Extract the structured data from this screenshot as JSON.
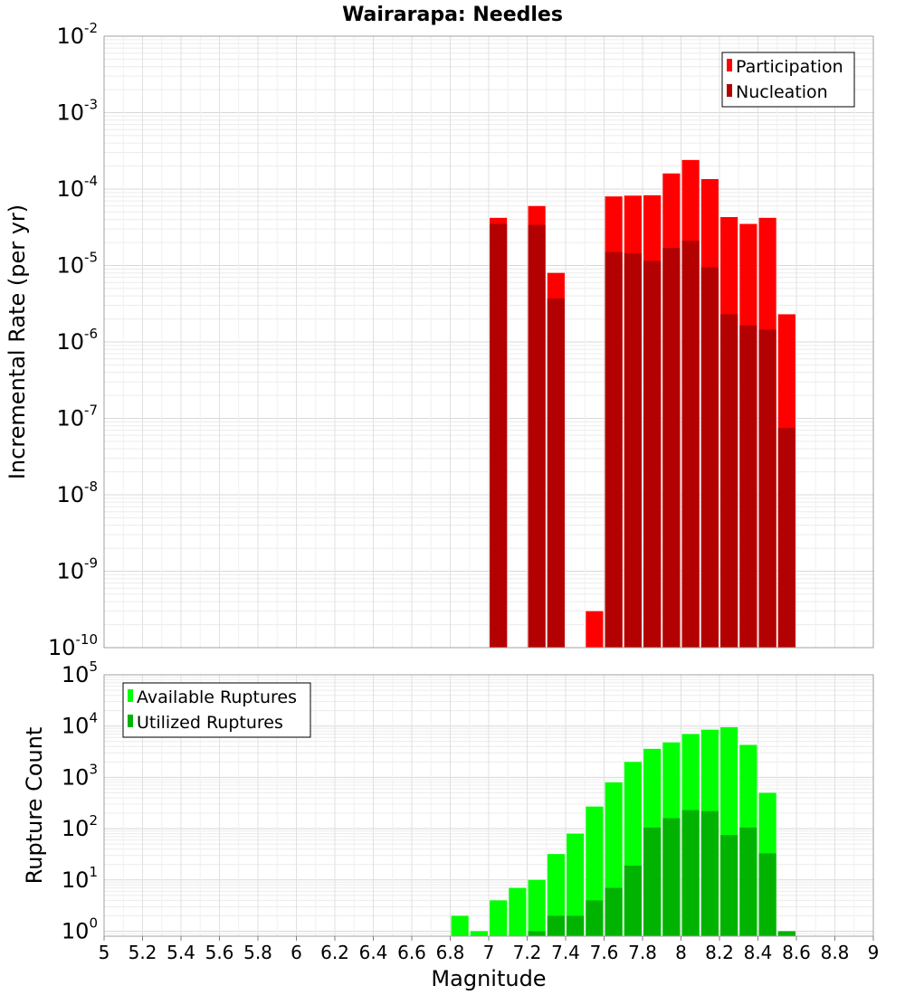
{
  "title": "Wairarapa: Needles",
  "xlabel": "Magnitude",
  "x_ticks": [
    "5",
    "5.2",
    "5.4",
    "5.6",
    "5.8",
    "6",
    "6.2",
    "6.4",
    "6.6",
    "6.8",
    "7",
    "7.2",
    "7.4",
    "7.6",
    "7.8",
    "8",
    "8.2",
    "8.4",
    "8.6",
    "8.8",
    "9"
  ],
  "chart_data": [
    {
      "type": "bar",
      "title": "Wairarapa: Needles",
      "ylabel": "Incremental Rate (per yr)",
      "y_scale": "log",
      "ylim": [
        1e-10,
        0.01
      ],
      "y_tick_exponents": [
        -2,
        -3,
        -4,
        -5,
        -6,
        -7,
        -8,
        -9,
        -10
      ],
      "legend_position": "top-right",
      "x": [
        7.05,
        7.25,
        7.35,
        7.55,
        7.65,
        7.75,
        7.85,
        7.95,
        8.05,
        8.15,
        8.25,
        8.35,
        8.45,
        8.55
      ],
      "series": [
        {
          "name": "Participation",
          "color": "#ff0000",
          "values": [
            4.2e-05,
            6e-05,
            8e-06,
            3e-10,
            8e-05,
            8.2e-05,
            8.3e-05,
            0.00016,
            0.00024,
            0.000135,
            4.3e-05,
            3.5e-05,
            4.2e-05,
            2.3e-06
          ]
        },
        {
          "name": "Nucleation",
          "color": "#b30000",
          "values": [
            3.5e-05,
            3.4e-05,
            3.7e-06,
            1e-10,
            1.5e-05,
            1.45e-05,
            1.15e-05,
            1.7e-05,
            2.1e-05,
            9.5e-06,
            2.3e-06,
            1.65e-06,
            1.45e-06,
            7.5e-08
          ]
        }
      ]
    },
    {
      "type": "bar",
      "ylabel": "Rupture Count",
      "y_scale": "log",
      "ylim": [
        0.8,
        100000
      ],
      "y_tick_exponents": [
        5,
        4,
        3,
        2,
        1,
        0
      ],
      "legend_position": "top-left",
      "x": [
        6.85,
        6.95,
        7.05,
        7.15,
        7.25,
        7.35,
        7.45,
        7.55,
        7.65,
        7.75,
        7.85,
        7.95,
        8.05,
        8.15,
        8.25,
        8.35,
        8.45,
        8.55
      ],
      "series": [
        {
          "name": "Available Ruptures",
          "color": "#00ff00",
          "values": [
            2,
            1,
            4,
            7,
            10,
            32,
            80,
            270,
            800,
            2000,
            3600,
            4800,
            7000,
            8500,
            9500,
            4300,
            500,
            1
          ]
        },
        {
          "name": "Utilized Ruptures",
          "color": "#00b300",
          "values": [
            0,
            0,
            0,
            0,
            1,
            2,
            2,
            4,
            7,
            19,
            105,
            160,
            230,
            220,
            75,
            105,
            33,
            1
          ]
        }
      ]
    }
  ]
}
